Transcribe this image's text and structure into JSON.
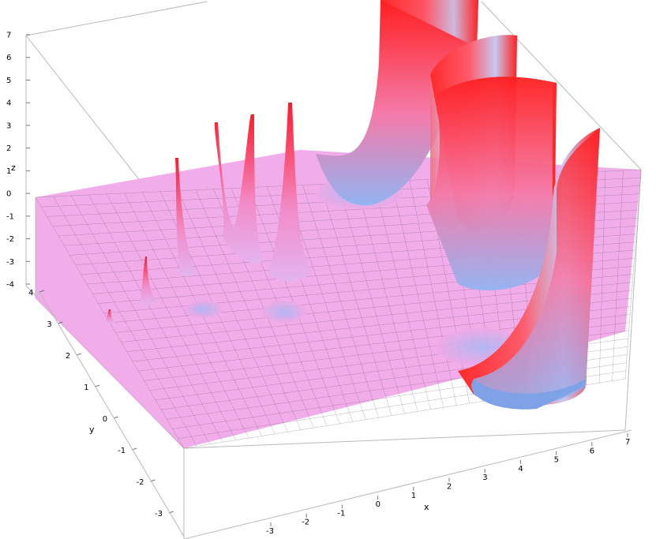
{
  "chart_data": {
    "type": "surface3d",
    "title": "",
    "xlabel": "x",
    "ylabel": "y",
    "zlabel": "z",
    "xlim": [
      -4,
      7
    ],
    "ylim": [
      -3.5,
      4
    ],
    "zlim": [
      -4,
      7
    ],
    "x_ticks": [
      "-3",
      "-2",
      "-1",
      "0",
      "1",
      "2",
      "3",
      "4",
      "5",
      "6",
      "7"
    ],
    "y_ticks": [
      "-3",
      "-2",
      "-1",
      "0",
      "1",
      "2",
      "3",
      "4"
    ],
    "z_ticks": [
      "-4",
      "-3",
      "-2",
      "-1",
      "0",
      "1",
      "2",
      "3",
      "4",
      "5",
      "6",
      "7"
    ],
    "surface": {
      "description_color_base": "#f0a6e6",
      "color_high": "#ff2020",
      "color_low": "#8fb0f0",
      "poles": [
        {
          "x": 5.5,
          "y": 3.6,
          "height": 7
        },
        {
          "x": 5.9,
          "y": 2.1,
          "height": 7
        },
        {
          "x": 6.3,
          "y": 0.6,
          "height": 7
        },
        {
          "x": 0.0,
          "y": 2.6,
          "height": 6
        },
        {
          "x": 0.0,
          "y": 1.8,
          "height": 5.5
        },
        {
          "x": -1.0,
          "y": 2.4,
          "height": 5
        },
        {
          "x": -2.0,
          "y": 2.8,
          "height": 4
        },
        {
          "x": -3.0,
          "y": 3.1,
          "height": 2
        }
      ],
      "wells": [
        {
          "x": 3.3,
          "y": 3.0,
          "depth": -2.5
        },
        {
          "x": 4.0,
          "y": 0.8,
          "depth": -3.5
        },
        {
          "x": 0.0,
          "y": 1.5,
          "depth": -1.5
        },
        {
          "x": -1.2,
          "y": 1.9,
          "depth": -1.2
        }
      ]
    }
  }
}
